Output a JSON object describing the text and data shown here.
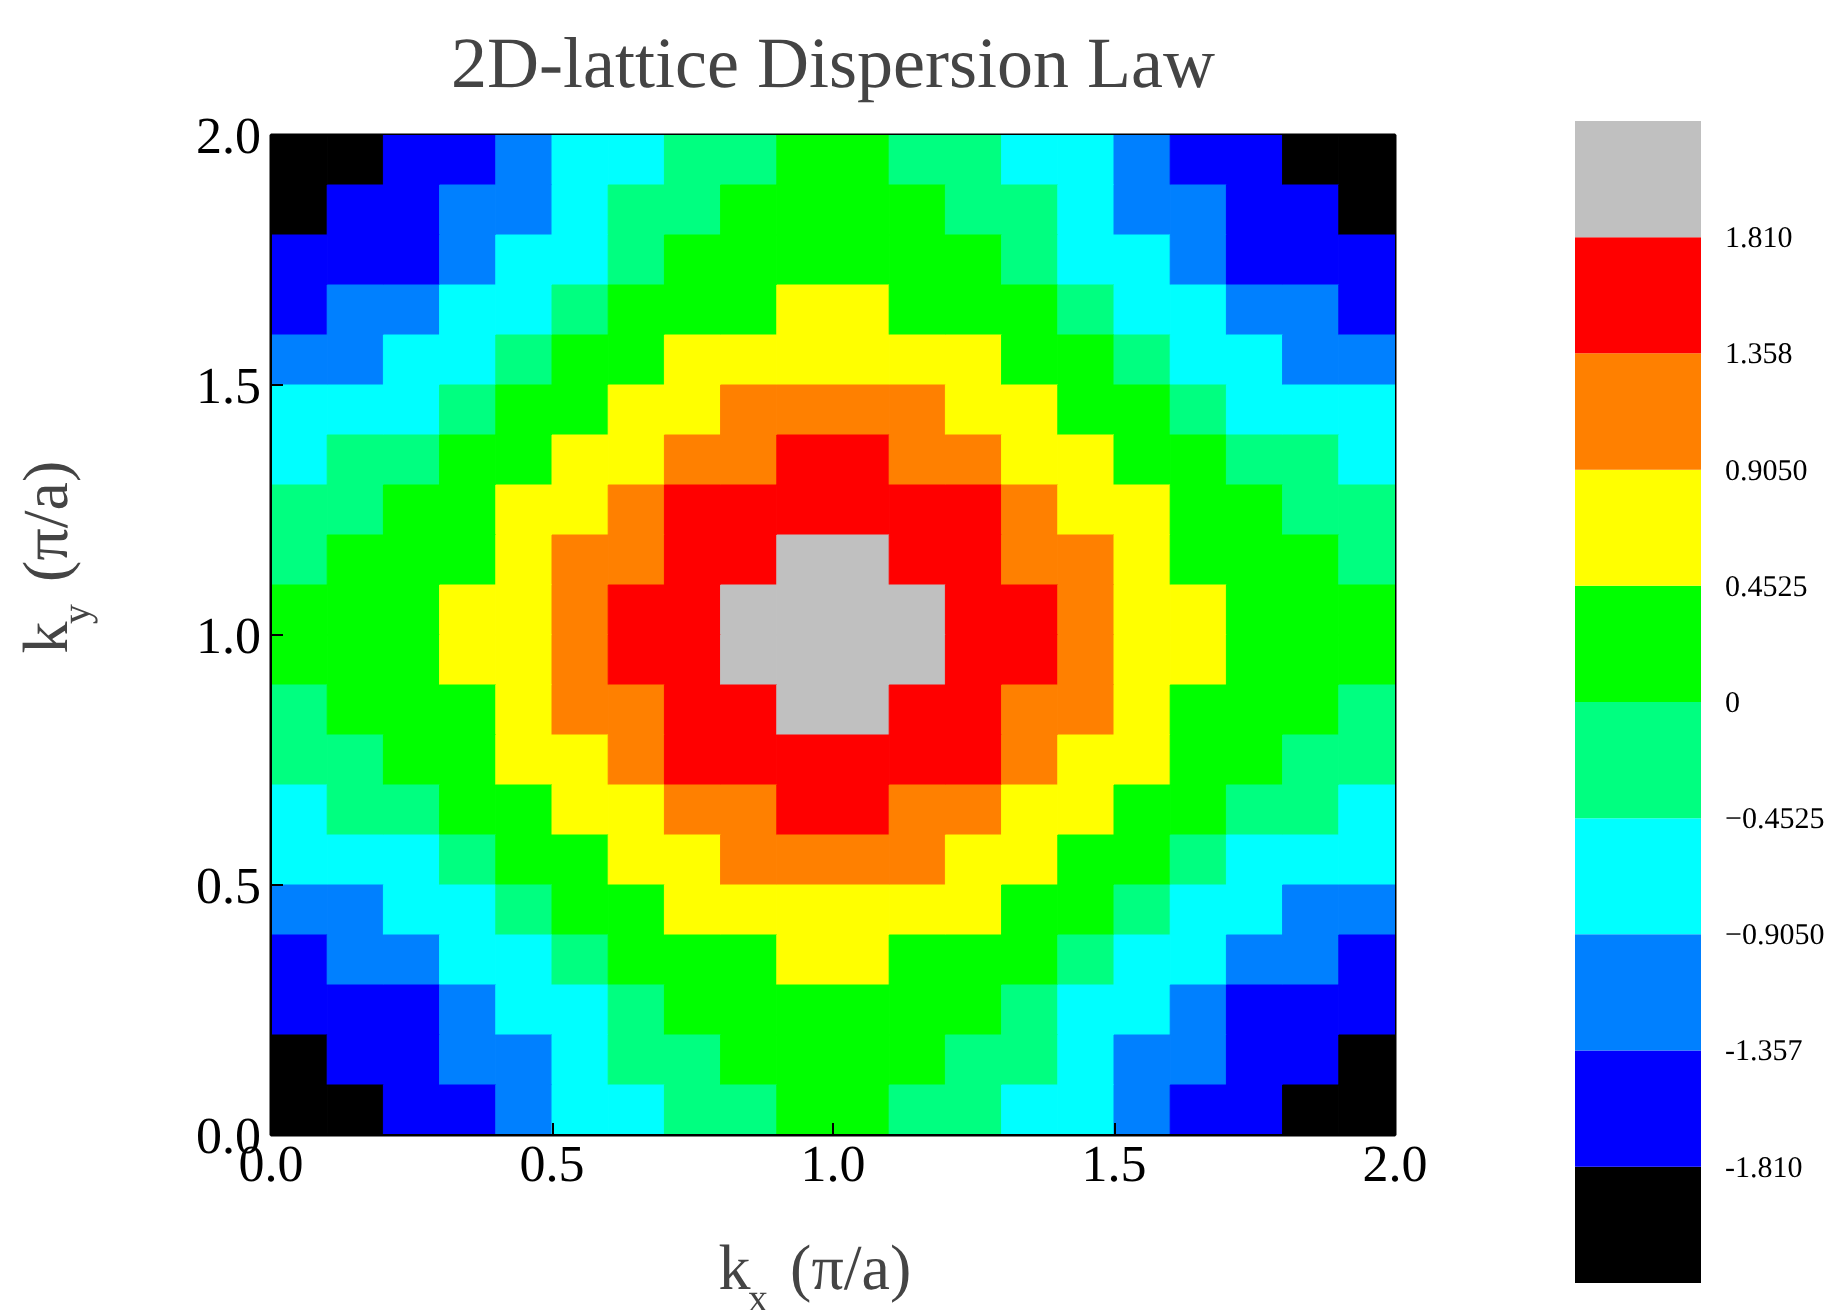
{
  "chart_data": {
    "type": "heatmap",
    "title": "2D-lattice Dispersion Law",
    "xlabel": "k$_{x}$ (π/a)",
    "ylabel": "k$_{y}$ (π/a)",
    "x": [
      0.05,
      0.15,
      0.25,
      0.35,
      0.45,
      0.55,
      0.65,
      0.75,
      0.85,
      0.95,
      1.05,
      1.15,
      1.25,
      1.35,
      1.45,
      1.55,
      1.65,
      1.75,
      1.85,
      1.95
    ],
    "y": [
      1.95,
      1.85,
      1.75,
      1.65,
      1.55,
      1.45,
      1.35,
      1.25,
      1.15,
      1.05,
      0.95,
      0.85,
      0.75,
      0.65,
      0.55,
      0.45,
      0.35,
      0.25,
      0.15,
      0.05
    ],
    "cells": [
      [
        -1.98,
        -1.88,
        -1.7,
        -1.44,
        -1.15,
        -0.83,
        -0.54,
        -0.28,
        -0.1,
        0.0,
        0.0,
        -0.1,
        -0.28,
        -0.54,
        -0.83,
        -1.15,
        -1.44,
        -1.7,
        -1.88,
        -1.98
      ],
      [
        -1.88,
        -1.78,
        -1.6,
        -1.34,
        -1.05,
        -0.73,
        -0.44,
        -0.18,
        0.0,
        0.1,
        0.1,
        0.0,
        -0.18,
        -0.44,
        -0.73,
        -1.05,
        -1.34,
        -1.6,
        -1.78,
        -1.88
      ],
      [
        -1.7,
        -1.6,
        -1.42,
        -1.16,
        -0.87,
        -0.55,
        -0.26,
        0.0,
        0.18,
        0.28,
        0.28,
        0.18,
        0.0,
        -0.26,
        -0.55,
        -0.87,
        -1.16,
        -1.42,
        -1.6,
        -1.7
      ],
      [
        -1.44,
        -1.34,
        -1.16,
        -0.9,
        -0.61,
        -0.29,
        0.0,
        0.26,
        0.44,
        0.54,
        0.54,
        0.44,
        0.26,
        0.0,
        -0.29,
        -0.61,
        -0.9,
        -1.16,
        -1.34,
        -1.44
      ],
      [
        -1.15,
        -1.05,
        -0.87,
        -0.61,
        -0.32,
        0.0,
        0.29,
        0.55,
        0.73,
        0.83,
        0.83,
        0.73,
        0.55,
        0.29,
        0.0,
        -0.32,
        -0.61,
        -0.87,
        -1.05,
        -1.15
      ],
      [
        -0.83,
        -0.73,
        -0.55,
        -0.29,
        0.0,
        0.32,
        0.61,
        0.87,
        1.05,
        1.15,
        1.15,
        1.05,
        0.87,
        0.61,
        0.32,
        0.0,
        -0.29,
        -0.55,
        -0.73,
        -0.83
      ],
      [
        -0.54,
        -0.44,
        -0.26,
        0.0,
        0.29,
        0.61,
        0.9,
        1.16,
        1.34,
        1.44,
        1.44,
        1.34,
        1.16,
        0.9,
        0.61,
        0.29,
        0.0,
        -0.26,
        -0.44,
        -0.54
      ],
      [
        -0.28,
        -0.18,
        0.0,
        0.26,
        0.55,
        0.87,
        1.16,
        1.42,
        1.6,
        1.7,
        1.7,
        1.6,
        1.42,
        1.16,
        0.87,
        0.55,
        0.26,
        0.0,
        -0.18,
        -0.28
      ],
      [
        -0.1,
        0.0,
        0.18,
        0.44,
        0.73,
        1.05,
        1.34,
        1.6,
        1.78,
        1.88,
        1.88,
        1.78,
        1.6,
        1.34,
        1.05,
        0.73,
        0.44,
        0.18,
        0.0,
        -0.1
      ],
      [
        0.0,
        0.1,
        0.28,
        0.54,
        0.83,
        1.15,
        1.44,
        1.7,
        1.88,
        1.98,
        1.98,
        1.88,
        1.7,
        1.44,
        1.15,
        0.83,
        0.54,
        0.28,
        0.1,
        0.0
      ],
      [
        0.0,
        0.1,
        0.28,
        0.54,
        0.83,
        1.15,
        1.44,
        1.7,
        1.88,
        1.98,
        1.98,
        1.88,
        1.7,
        1.44,
        1.15,
        0.83,
        0.54,
        0.28,
        0.1,
        0.0
      ],
      [
        -0.1,
        0.0,
        0.18,
        0.44,
        0.73,
        1.05,
        1.34,
        1.6,
        1.78,
        1.88,
        1.88,
        1.78,
        1.6,
        1.34,
        1.05,
        0.73,
        0.44,
        0.18,
        0.0,
        -0.1
      ],
      [
        -0.28,
        -0.18,
        0.0,
        0.26,
        0.55,
        0.87,
        1.16,
        1.42,
        1.6,
        1.7,
        1.7,
        1.6,
        1.42,
        1.16,
        0.87,
        0.55,
        0.26,
        0.0,
        -0.18,
        -0.28
      ],
      [
        -0.54,
        -0.44,
        -0.26,
        0.0,
        0.29,
        0.61,
        0.9,
        1.16,
        1.34,
        1.44,
        1.44,
        1.34,
        1.16,
        0.9,
        0.61,
        0.29,
        0.0,
        -0.26,
        -0.44,
        -0.54
      ],
      [
        -0.83,
        -0.73,
        -0.55,
        -0.29,
        0.0,
        0.32,
        0.61,
        0.87,
        1.05,
        1.15,
        1.15,
        1.05,
        0.87,
        0.61,
        0.32,
        0.0,
        -0.29,
        -0.55,
        -0.73,
        -0.83
      ],
      [
        -1.15,
        -1.05,
        -0.87,
        -0.61,
        -0.32,
        0.0,
        0.29,
        0.55,
        0.73,
        0.83,
        0.83,
        0.73,
        0.55,
        0.29,
        0.0,
        -0.32,
        -0.61,
        -0.87,
        -1.05,
        -1.15
      ],
      [
        -1.44,
        -1.34,
        -1.16,
        -0.9,
        -0.61,
        -0.29,
        0.0,
        0.26,
        0.44,
        0.54,
        0.54,
        0.44,
        0.26,
        0.0,
        -0.29,
        -0.61,
        -0.9,
        -1.16,
        -1.34,
        -1.44
      ],
      [
        -1.7,
        -1.6,
        -1.42,
        -1.16,
        -0.87,
        -0.55,
        -0.26,
        0.0,
        0.18,
        0.28,
        0.28,
        0.18,
        0.0,
        -0.26,
        -0.55,
        -0.87,
        -1.16,
        -1.42,
        -1.6,
        -1.7
      ],
      [
        -1.88,
        -1.78,
        -1.6,
        -1.34,
        -1.05,
        -0.73,
        -0.44,
        -0.18,
        0.0,
        0.1,
        0.1,
        0.0,
        -0.18,
        -0.44,
        -0.73,
        -1.05,
        -1.34,
        -1.6,
        -1.78,
        -1.88
      ],
      [
        -1.98,
        -1.88,
        -1.7,
        -1.44,
        -1.15,
        -0.83,
        -0.54,
        -0.28,
        -0.1,
        0.0,
        0.0,
        -0.1,
        -0.28,
        -0.54,
        -0.83,
        -1.15,
        -1.44,
        -1.7,
        -1.88,
        -1.98
      ]
    ],
    "xlim": [
      0,
      2
    ],
    "ylim": [
      0,
      2
    ],
    "xticks": [
      {
        "value": 0,
        "label": "0.0"
      },
      {
        "value": 0.5,
        "label": "0.5"
      },
      {
        "value": 1,
        "label": "1.0"
      },
      {
        "value": 1.5,
        "label": "1.5"
      },
      {
        "value": 2,
        "label": "2.0"
      }
    ],
    "yticks": [
      {
        "value": 0,
        "label": "0.0"
      },
      {
        "value": 0.5,
        "label": "0.5"
      },
      {
        "value": 1,
        "label": "1.0"
      },
      {
        "value": 1.5,
        "label": "1.5"
      },
      {
        "value": 2,
        "label": "2.0"
      }
    ],
    "clim": [
      -2.263,
      2.263
    ],
    "cticks": [
      {
        "value": -1.81,
        "label": "-1.810"
      },
      {
        "value": -1.357,
        "label": "-1.357"
      },
      {
        "value": -0.905,
        "label": "−0.9050"
      },
      {
        "value": -0.4525,
        "label": "−0.4525"
      },
      0,
      {
        "value": 0.4525,
        "label": "0.4525"
      },
      {
        "value": 0.905,
        "label": "0.9050"
      },
      {
        "value": 1.358,
        "label": "1.358"
      },
      {
        "value": 1.81,
        "label": "1.810"
      }
    ],
    "colors": [
      "#000000",
      "#0000ff",
      "#0080ff",
      "#00ffff",
      "#00ff80",
      "#00ff00",
      "#ffff00",
      "#ff8000",
      "#ff0000",
      "#c0c0c0"
    ]
  }
}
